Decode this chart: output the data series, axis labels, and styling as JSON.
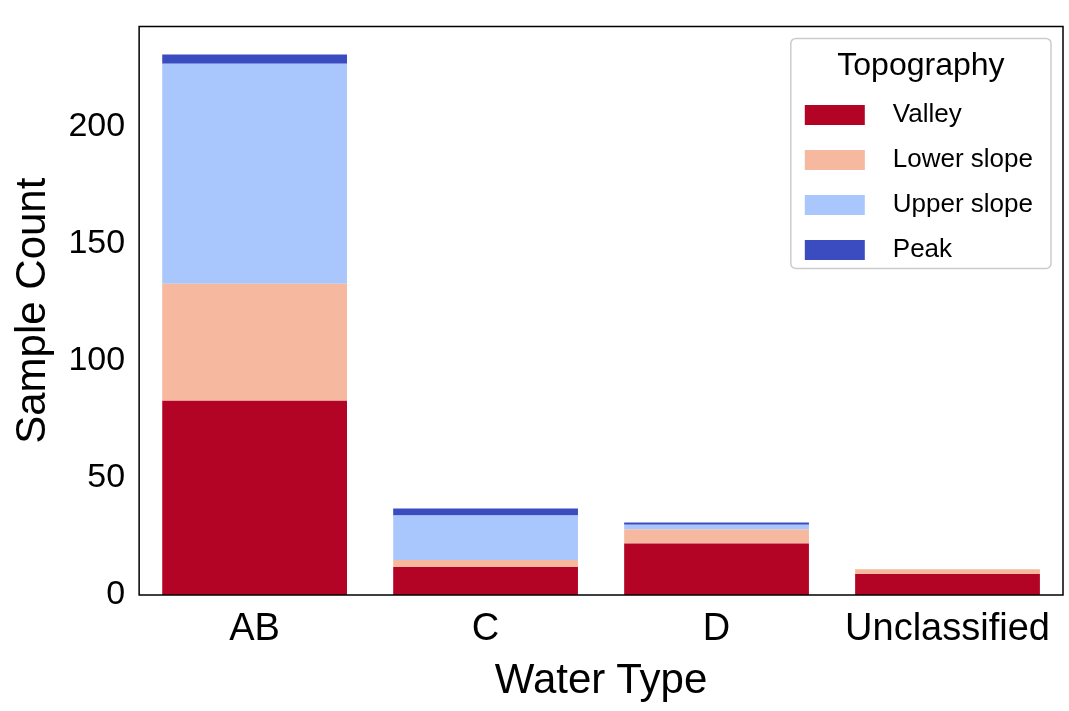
{
  "chart_data": {
    "type": "bar",
    "stacked": true,
    "xlabel": "Water Type",
    "ylabel": "Sample Count",
    "legend_title": "Topography",
    "legend": "top right",
    "grid": false,
    "categories": [
      "AB",
      "C",
      "D",
      "Unclassified"
    ],
    "ylim": [
      0,
      243
    ],
    "yticks": [
      0,
      50,
      100,
      150,
      200
    ],
    "series": [
      {
        "name": "Valley",
        "color": "#b40426",
        "values": [
          83,
          12,
          22,
          9
        ]
      },
      {
        "name": "Lower slope",
        "color": "#f6b89e",
        "values": [
          50,
          3,
          6,
          2
        ]
      },
      {
        "name": "Upper slope",
        "color": "#aac7fd",
        "values": [
          94,
          19,
          2,
          0
        ]
      },
      {
        "name": "Peak",
        "color": "#3b4cc0",
        "values": [
          4,
          3,
          1,
          0
        ]
      }
    ]
  }
}
